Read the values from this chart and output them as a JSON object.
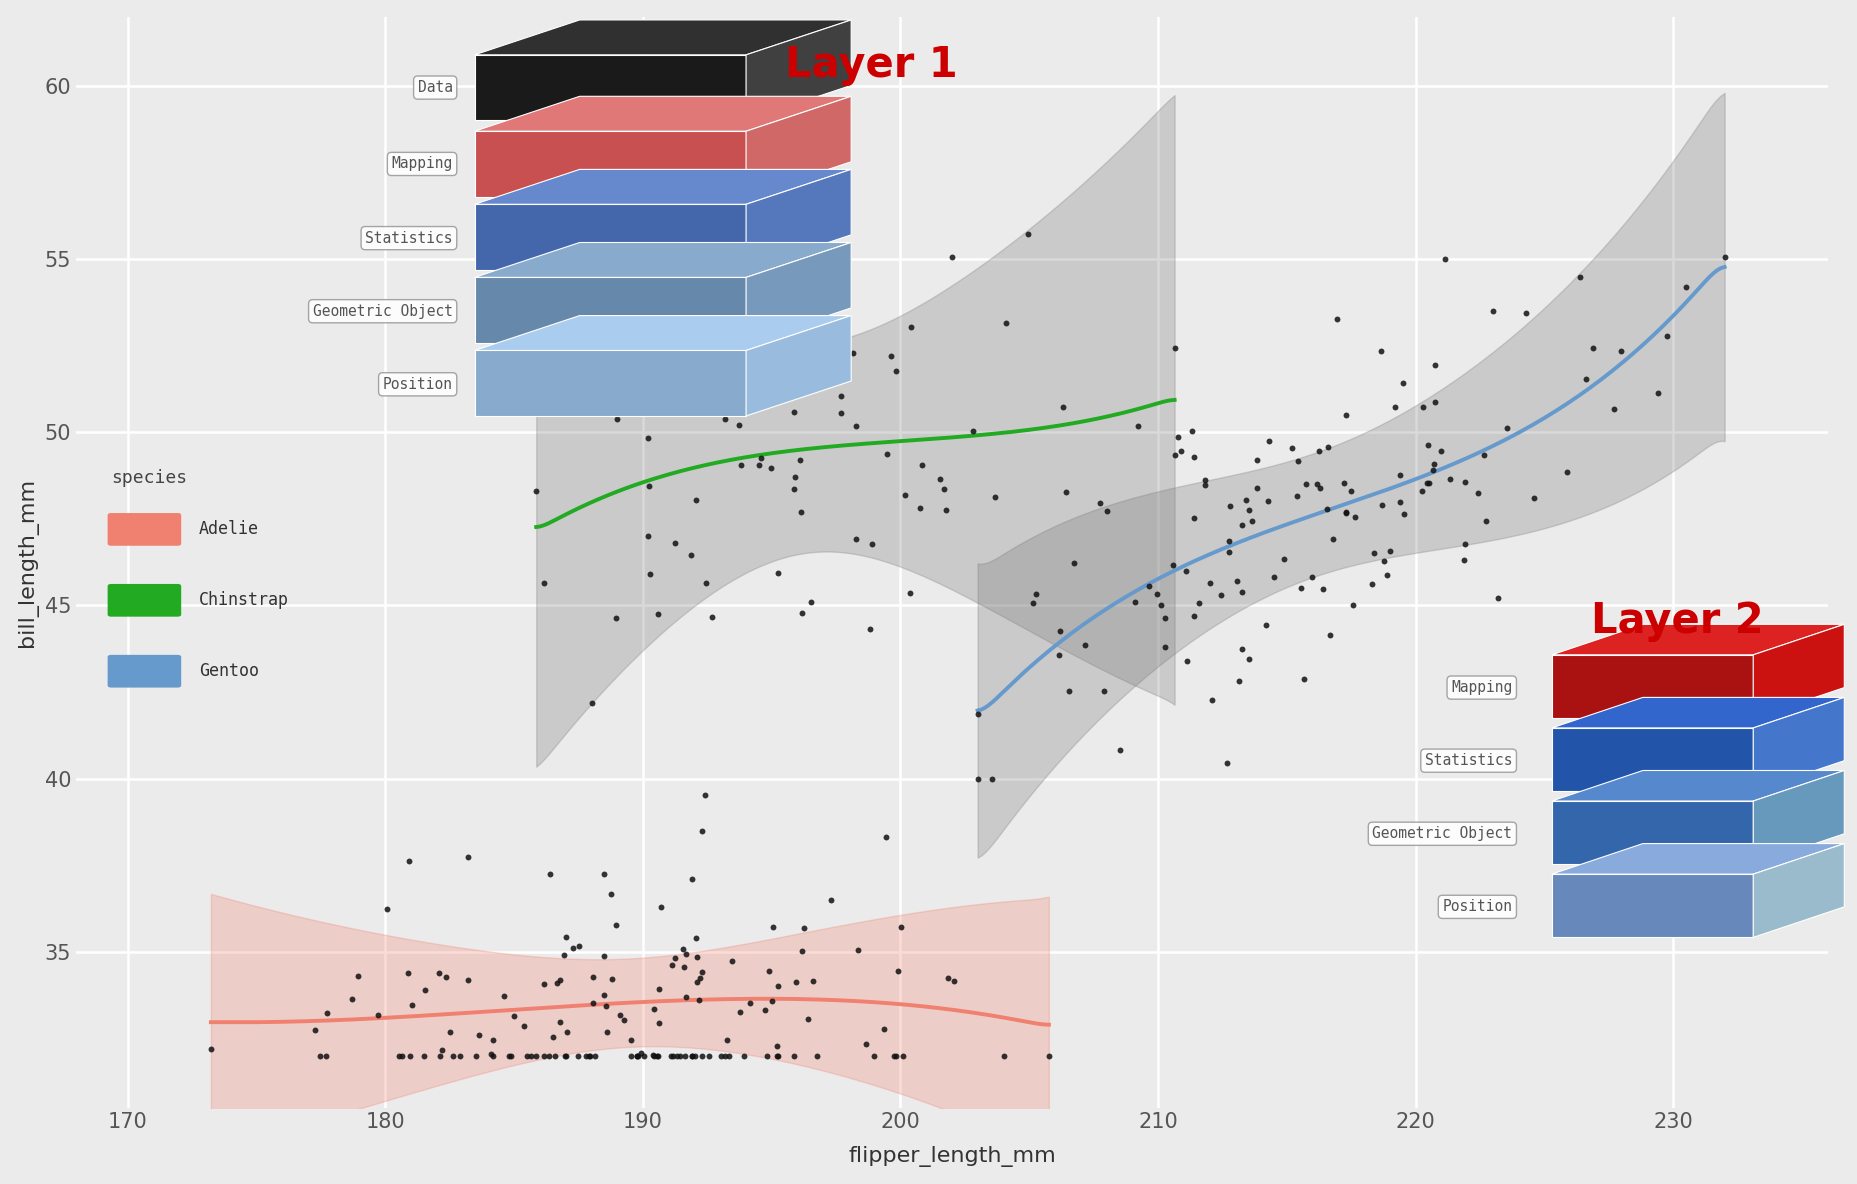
{
  "xlabel": "flipper_length_mm",
  "ylabel": "bill_length_mm",
  "xlim": [
    168,
    236
  ],
  "ylim": [
    30.5,
    62
  ],
  "xticks": [
    170,
    180,
    190,
    200,
    210,
    220,
    230
  ],
  "yticks": [
    35,
    40,
    45,
    50,
    55,
    60
  ],
  "bg_color": "#EBEBEB",
  "grid_color": "#FFFFFF",
  "layer1_items": [
    "Data",
    "Mapping",
    "Statistics",
    "Geometric Object",
    "Position"
  ],
  "layer2_items": [
    "Mapping",
    "Statistics",
    "Geometric Object",
    "Position"
  ],
  "legend_title": "species",
  "legend_items": [
    "Adelie",
    "Chinstrap",
    "Gentoo"
  ],
  "adelie_color": "#F08070",
  "chinstrap_color": "#22AA22",
  "gentoo_color": "#6699CC",
  "point_color": "#111111",
  "point_size": 18,
  "seed": 42
}
